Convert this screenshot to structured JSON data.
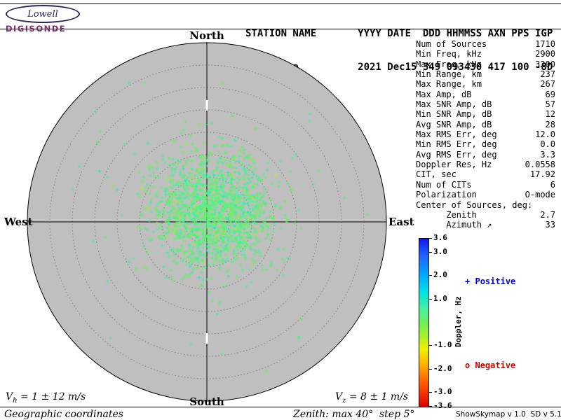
{
  "logo": {
    "line1": "Lowell",
    "line2": "DIGISONDE"
  },
  "header": {
    "line1": "STATION NAME       YYYY DATE  DDD HHMMSS AXN PPS IGP",
    "line2": "Boa Vista          2021 Dec15 349 093430 417 100 -8D"
  },
  "stats": {
    "rows": [
      {
        "label": "Num of Sources",
        "value": "1710"
      },
      {
        "label": "Min Freq, kHz",
        "value": "2900"
      },
      {
        "label": "Max Freq, kHz",
        "value": "3200"
      },
      {
        "label": "Min Range, km",
        "value": "237"
      },
      {
        "label": "Max Range, km",
        "value": "267"
      },
      {
        "label": "Max Amp, dB",
        "value": "69"
      },
      {
        "label": "Max SNR Amp, dB",
        "value": "57"
      },
      {
        "label": "Min SNR Amp, dB",
        "value": "12"
      },
      {
        "label": "Avg SNR Amp, dB",
        "value": "28"
      },
      {
        "label": "Max RMS Err, deg",
        "value": "12.0"
      },
      {
        "label": "Min RMS Err, deg",
        "value": "0.0"
      },
      {
        "label": "Avg RMS Err, deg",
        "value": "3.3"
      },
      {
        "label": "Doppler Res, Hz",
        "value": "0.0558"
      },
      {
        "label": "CIT, sec",
        "value": "17.92"
      },
      {
        "label": "Num of CITs",
        "value": "6"
      },
      {
        "label": "Polarization",
        "value": "O-mode"
      },
      {
        "label": "Center of Sources, deg:",
        "value": ""
      },
      {
        "label": "      Zenith",
        "value": "2.7"
      },
      {
        "label": "      Azimuth ↗",
        "value": "33"
      }
    ]
  },
  "chart_data": {
    "type": "scatter",
    "projection": "polar sky map (azimuth / zenith angle)",
    "compass": {
      "north": "North",
      "south": "South",
      "east": "East",
      "west": "West"
    },
    "zenith_max_deg": 40,
    "zenith_ring_step_deg": 5,
    "plot_bg": "#bfbfbf",
    "colorbar": {
      "label": "Doppler, Hz",
      "max": 3.6,
      "min": -3.6,
      "ticks": [
        "3.6",
        "3.0",
        "2.0",
        "1.0",
        "-1.0",
        "-2.0",
        "-3.0",
        "-3.6"
      ],
      "stops": [
        [
          0.0,
          "#1212ee"
        ],
        [
          0.1,
          "#2262ff"
        ],
        [
          0.22,
          "#00aaff"
        ],
        [
          0.32,
          "#00e4e4"
        ],
        [
          0.42,
          "#4cf0a0"
        ],
        [
          0.5,
          "#6cf05c"
        ],
        [
          0.58,
          "#a8f02a"
        ],
        [
          0.66,
          "#f0f000"
        ],
        [
          0.76,
          "#ffa800"
        ],
        [
          0.86,
          "#ff5a00"
        ],
        [
          1.0,
          "#dd0000"
        ]
      ]
    },
    "legend": {
      "positive": {
        "symbol": "+",
        "label": "Positive",
        "color": "#0000cc"
      },
      "negative": {
        "symbol": "o",
        "label": "Negative",
        "color": "#cc0000"
      }
    },
    "sources": {
      "count": 1710,
      "center_zenith_deg": 2.7,
      "center_azimuth_deg": 33,
      "zenith_sigma_deg": 6.8,
      "outlier_fraction": 0.03,
      "doppler_mean_hz": 0.28,
      "doppler_sigma_hz": 0.28,
      "seed": 20211215
    },
    "annotations": [
      "Vh = 1 ± 12 m/s",
      "Vz = 8 ± 1 m/s",
      "Geographic coordinates",
      "Zenith: max 40°  step 5°"
    ]
  },
  "footer": {
    "vh_var": "V",
    "vh_sub": "h",
    "vh_rest": " = 1 ± 12 m/s",
    "vz_var": "V",
    "vz_sub": "z",
    "vz_rest": " = 8 ± 1 m/s",
    "coords": "Geographic coordinates",
    "zenith_note": "Zenith: max 40°  step 5°",
    "version": "ShowSkymap v 1.0  SD v 5.1"
  }
}
